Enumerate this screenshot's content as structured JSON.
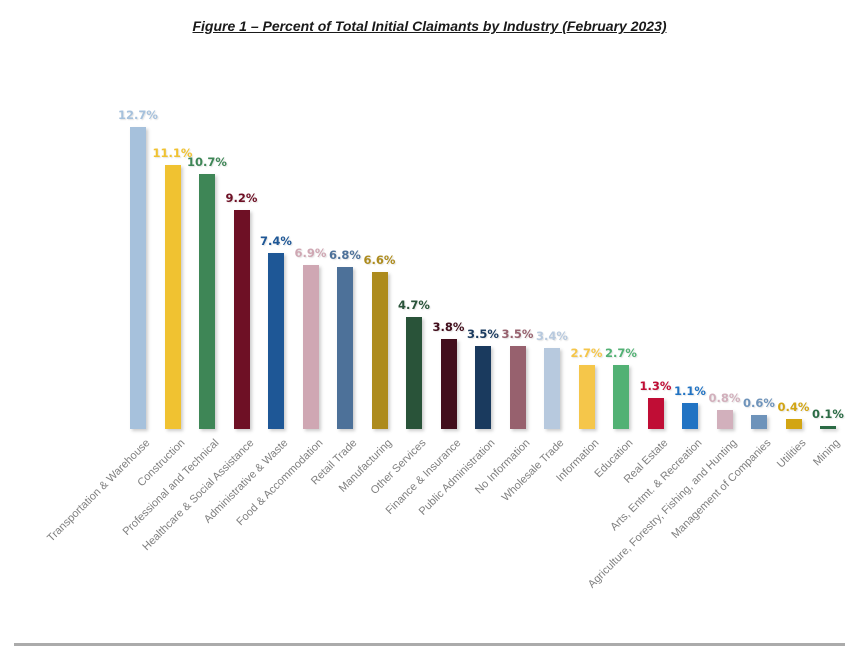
{
  "chart_data": {
    "type": "bar",
    "title": "Figure 1 – Percent of Total Initial Claimants by Industry (February 2023)",
    "xlabel": "",
    "ylabel": "",
    "ylim": [
      0,
      13
    ],
    "grid": false,
    "legend": false,
    "background_color": "#ffffff",
    "category_label_color": "#7f7f7f",
    "categories": [
      "Transportation & Warehouse",
      "Construction",
      "Professional and Technical",
      "Healthcare & Social Assistance",
      "Administrative & Waste",
      "Food & Accommodation",
      "Retail Trade",
      "Manufacturing",
      "Other Services",
      "Finance & Insurance",
      "Public Administration",
      "No Information",
      "Wholesale Trade",
      "Information",
      "Education",
      "Real Estate",
      "Arts, Entmt. & Recreation",
      "Agriculture, Forestry, Fishing, and Hunting",
      "Management of Companies",
      "Utilities",
      "Mining"
    ],
    "values": [
      12.7,
      11.1,
      10.7,
      9.2,
      7.4,
      6.9,
      6.8,
      6.6,
      4.7,
      3.8,
      3.5,
      3.5,
      3.4,
      2.7,
      2.7,
      1.3,
      1.1,
      0.8,
      0.6,
      0.4,
      0.1
    ],
    "value_labels": [
      "12.7%",
      "11.1%",
      "10.7%",
      "9.2%",
      "7.4%",
      "6.9%",
      "6.8%",
      "6.6%",
      "4.7%",
      "3.8%",
      "3.5%",
      "3.5%",
      "3.4%",
      "2.7%",
      "2.7%",
      "1.3%",
      "1.1%",
      "0.8%",
      "0.6%",
      "0.4%",
      "0.1%"
    ],
    "bar_colors": [
      "#a6c1dc",
      "#f0c231",
      "#3e8656",
      "#6e1025",
      "#1e5796",
      "#cfa7b3",
      "#4d7199",
      "#ad8b1d",
      "#295339",
      "#420e1c",
      "#1a3a5e",
      "#97616e",
      "#b7c9de",
      "#f5c64a",
      "#52b174",
      "#c00d35",
      "#2173c3",
      "#d2b0bc",
      "#6e93ba",
      "#d2a513",
      "#2b6b45"
    ]
  }
}
